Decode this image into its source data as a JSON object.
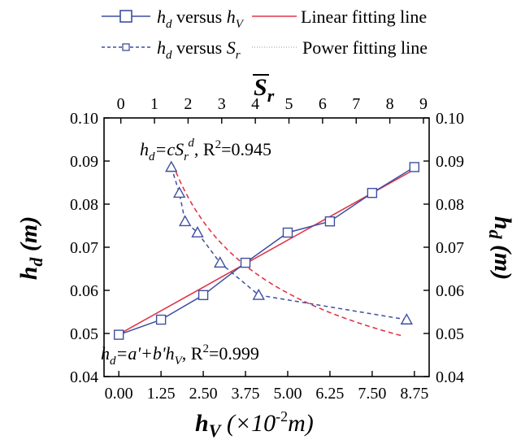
{
  "chart_data": {
    "type": "line",
    "title": "",
    "colors": {
      "blue": "#3d4f9f",
      "red": "#e0364a",
      "axis": "#000000"
    },
    "bottom_axis": {
      "label": "h_V (×10^-2 m)",
      "range": [
        -0.4375,
        9.1875
      ],
      "ticks": [
        "0.00",
        "1.25",
        "2.50",
        "3.75",
        "5.00",
        "6.25",
        "7.50",
        "8.75"
      ],
      "tick_values": [
        0,
        1.25,
        2.5,
        3.75,
        5.0,
        6.25,
        7.5,
        8.75
      ]
    },
    "top_axis": {
      "label": "S̄_r",
      "range": [
        -0.5,
        9.17
      ],
      "ticks": [
        "0",
        "1",
        "2",
        "3",
        "4",
        "5",
        "6",
        "7",
        "8",
        "9"
      ],
      "tick_values": [
        0,
        1,
        2,
        3,
        4,
        5,
        6,
        7,
        8,
        9
      ]
    },
    "left_axis": {
      "label": "h_d (m)",
      "range": [
        0.04,
        0.1
      ],
      "ticks": [
        "0.04",
        "0.05",
        "0.06",
        "0.07",
        "0.08",
        "0.09",
        "0.10"
      ],
      "tick_values": [
        0.04,
        0.05,
        0.06,
        0.07,
        0.08,
        0.09,
        0.1
      ]
    },
    "right_axis": {
      "label": "h_d (m)",
      "range": [
        0.04,
        0.1
      ],
      "ticks": [
        "0.04",
        "0.05",
        "0.06",
        "0.07",
        "0.08",
        "0.09",
        "0.10"
      ],
      "tick_values": [
        0.04,
        0.05,
        0.06,
        0.07,
        0.08,
        0.09,
        0.1
      ]
    },
    "series": [
      {
        "name": "h_d versus h_V",
        "x_axis": "bottom",
        "marker": "square",
        "line": "solid",
        "x": [
          0.0,
          1.25,
          2.5,
          3.75,
          5.0,
          6.25,
          7.5,
          8.75
        ],
        "y": [
          0.0497,
          0.0532,
          0.0589,
          0.0664,
          0.0734,
          0.076,
          0.0826,
          0.0886
        ]
      },
      {
        "name": "h_d versus S_r",
        "x_axis": "top",
        "marker": "triangle",
        "line": "dashed",
        "x": [
          1.5,
          1.74,
          1.91,
          2.28,
          2.95,
          4.1,
          8.5
        ],
        "y": [
          0.0886,
          0.0826,
          0.076,
          0.0734,
          0.0664,
          0.0589,
          0.0532
        ]
      }
    ],
    "fits": [
      {
        "name": "Linear fitting line",
        "model": "linear",
        "x_axis": "bottom",
        "intercept": 0.0498,
        "slope": 0.00437,
        "x_range": [
          0.0,
          8.75
        ]
      },
      {
        "name": "Power fitting line",
        "model": "power",
        "x_axis": "top",
        "c": 0.104,
        "d": -0.35,
        "x_range": [
          1.55,
          8.4
        ]
      }
    ],
    "annotations": {
      "power_fit": {
        "main": "h",
        "sub": "d",
        "eq": "=cS",
        "sub2": "r",
        "sup": "d",
        "sep": ", R",
        "sup2": "2",
        "val": "=0.945"
      },
      "linear_fit": {
        "main": "h",
        "sub": "d",
        "eq": "=a'+b'h",
        "sub2": "V",
        "sep": ", R",
        "sup2": "2",
        "val": "=0.999"
      }
    },
    "axis_title_parts": {
      "bottom": {
        "main": "h",
        "sub": "V",
        "unit_pre": " (×10",
        "unit_sup": "-2",
        "unit_post": "m)"
      },
      "left": {
        "main": "h",
        "sub": "d",
        "unit": " (m)"
      },
      "right": {
        "main": "h",
        "sub": "d",
        "unit": " (m)"
      },
      "top": {
        "main": "S",
        "sub": "r"
      }
    },
    "legend": {
      "placement": "top",
      "items": [
        {
          "main": "h",
          "sub": "d",
          "mid": " versus ",
          "main2": "h",
          "sub2": "V"
        },
        {
          "text": "Linear fitting line"
        },
        {
          "main": "h",
          "sub": "d",
          "mid": " versus ",
          "main2": "S",
          "sub2": "r"
        },
        {
          "text": "Power fitting line"
        }
      ]
    },
    "grid": false
  }
}
